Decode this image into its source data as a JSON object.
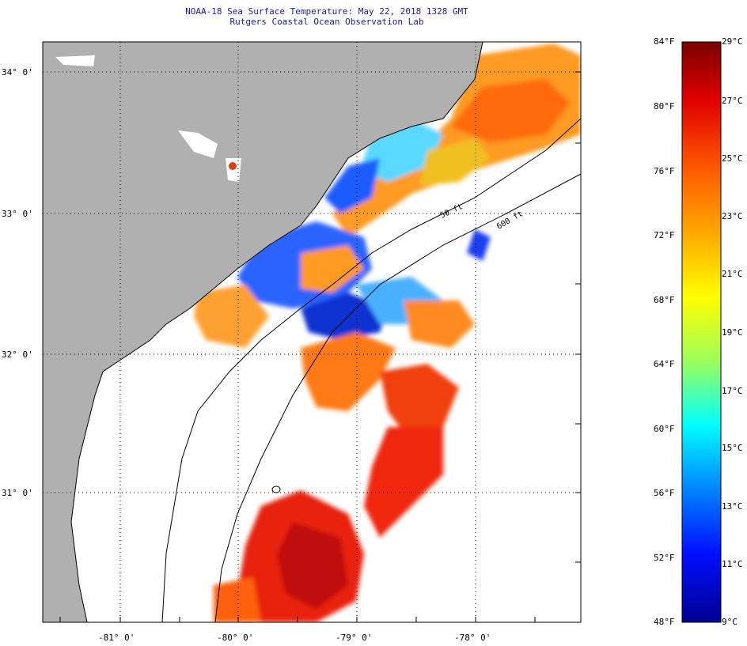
{
  "title": "NOAA-18 Sea Surface Temperature:  May 22, 2018 1328 GMT",
  "subtitle": "Rutgers Coastal Ocean Observation Lab",
  "map": {
    "lat_labels": [
      "34° 0'",
      "33° 0'",
      "32° 0'",
      "31° 0'"
    ],
    "lon_labels": [
      "-81° 0'",
      "-80° 0'",
      "-79° 0'",
      "-78° 0'"
    ],
    "contour_labels": [
      "50 ft",
      "600 ft"
    ],
    "land_color": "#b0b0b0",
    "water_nodata_color": "#ffffff"
  },
  "colorbar": {
    "fahrenheit": [
      "84°F",
      "80°F",
      "76°F",
      "72°F",
      "68°F",
      "64°F",
      "60°F",
      "56°F",
      "52°F",
      "48°F"
    ],
    "celsius": [
      "29°C",
      "27°C",
      "25°C",
      "23°C",
      "21°C",
      "19°C",
      "17°C",
      "15°C",
      "13°C",
      "11°C",
      "9°C"
    ],
    "colors_top_to_bottom": [
      "#7a0000",
      "#e00000",
      "#ff5a00",
      "#ffb000",
      "#ffff00",
      "#9cff5a",
      "#00ffff",
      "#0090ff",
      "#0010ff",
      "#000090"
    ]
  }
}
